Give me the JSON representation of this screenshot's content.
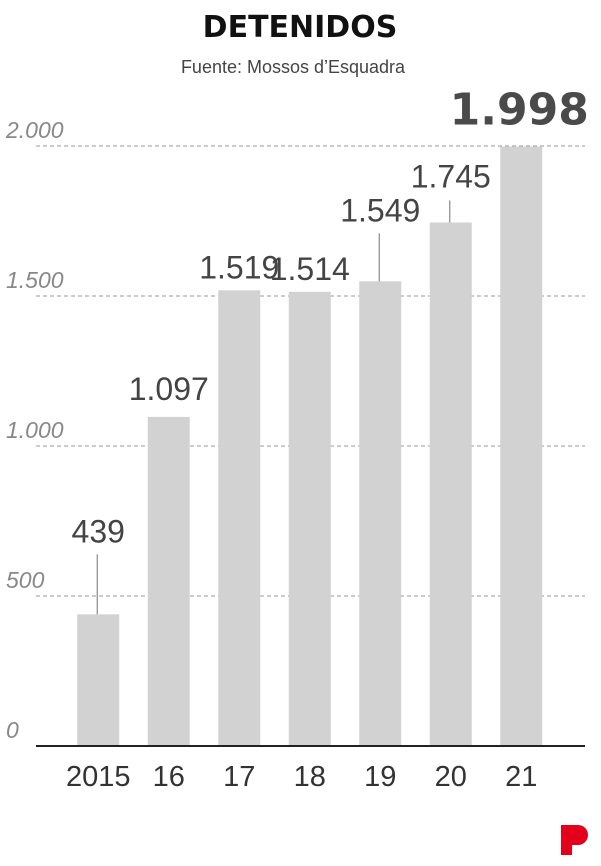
{
  "title": "DETENIDOS",
  "subtitle": "Fuente: Mossos d’Esquadra",
  "logo": {
    "name": "publisher-logo",
    "color": "#e3001b"
  },
  "colors": {
    "bar": "#d2d2d2",
    "grid": "#999999",
    "axis": "#222222",
    "leader": "#888888"
  },
  "chart_data": {
    "type": "bar",
    "title": "DETENIDOS",
    "subtitle": "Fuente: Mossos d’Esquadra",
    "categories": [
      "2015",
      "16",
      "17",
      "18",
      "19",
      "20",
      "21"
    ],
    "values": [
      439,
      1097,
      1519,
      1514,
      1549,
      1745,
      1998
    ],
    "value_labels": [
      "439",
      "1.097",
      "1.519",
      "1.514",
      "1.549",
      "1.745",
      "1.998"
    ],
    "highlight_index": 6,
    "ylim": [
      0,
      2000
    ],
    "yticks": [
      0,
      500,
      1000,
      1500,
      2000
    ],
    "ytick_labels": [
      "0",
      "500",
      "1.000",
      "1.500",
      "2.000"
    ],
    "grid": true,
    "xlabel": "",
    "ylabel": ""
  }
}
